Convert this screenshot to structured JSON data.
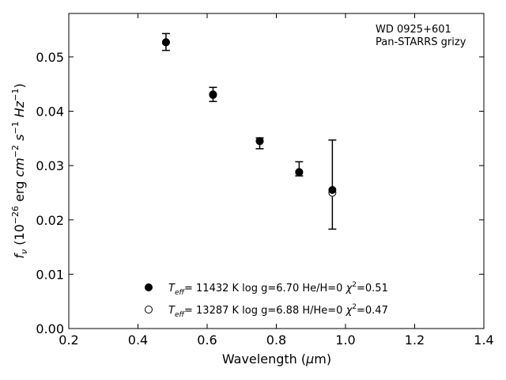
{
  "chart_data": {
    "type": "scatter",
    "title": "",
    "xlabel": "Wavelength (μm)",
    "ylabel": "f_ν (10^-26 erg cm^-2 s^-1 Hz^-1)",
    "xlim": [
      0.2,
      1.4
    ],
    "ylim": [
      0.0,
      0.058
    ],
    "x_ticks": [
      "0.2",
      "0.4",
      "0.6",
      "0.8",
      "1.0",
      "1.2",
      "1.4"
    ],
    "y_ticks": [
      "0.00",
      "0.01",
      "0.02",
      "0.03",
      "0.04",
      "0.05"
    ],
    "grid": false,
    "legend_position": "bottom-center",
    "annotation": [
      "WD 0925+601",
      "Pan-STARRS grizy"
    ],
    "observed": {
      "x": [
        0.481,
        0.617,
        0.752,
        0.866,
        0.962
      ],
      "y": [
        0.0528,
        0.0432,
        0.0346,
        0.0289,
        0.0257
      ],
      "yerr_low": [
        0.0512,
        0.0418,
        0.0331,
        0.0281,
        0.0183
      ],
      "yerr_high": [
        0.0543,
        0.0444,
        0.0351,
        0.0307,
        0.0347
      ]
    },
    "series": [
      {
        "name": "T_eff= 11432 K  log g=6.70  He/H=0  χ²=0.51",
        "marker": "filled-circle",
        "x": [
          0.481,
          0.617,
          0.752,
          0.866,
          0.962
        ],
        "y": [
          0.0527,
          0.0431,
          0.0345,
          0.0288,
          0.0255
        ]
      },
      {
        "name": "T_eff= 13287 K  log g=6.88  H/He=0  χ²=0.47",
        "marker": "open-circle",
        "x": [
          0.481,
          0.617,
          0.752,
          0.866,
          0.962
        ],
        "y": [
          0.0527,
          0.043,
          0.0345,
          0.0288,
          0.025
        ]
      }
    ]
  }
}
